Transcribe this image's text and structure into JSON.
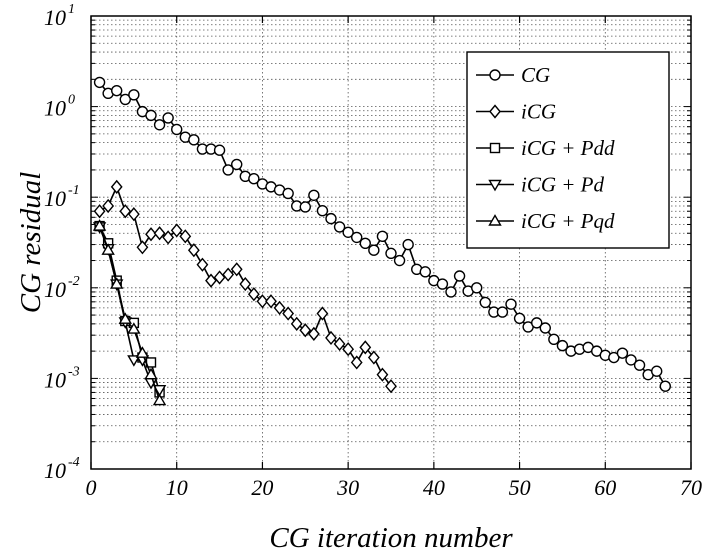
{
  "chart_data": {
    "type": "line",
    "xlabel": "CG iteration number",
    "ylabel": "CG residual",
    "x_scale": "linear",
    "y_scale": "log",
    "xlim": [
      0,
      70
    ],
    "ylim": [
      0.0001,
      10
    ],
    "x_ticks": [
      0,
      10,
      20,
      30,
      40,
      50,
      60,
      70
    ],
    "y_ticks": [
      {
        "exp": -4,
        "base": "10",
        "exp_label": "-4"
      },
      {
        "exp": -3,
        "base": "10",
        "exp_label": "-3"
      },
      {
        "exp": -2,
        "base": "10",
        "exp_label": "-2"
      },
      {
        "exp": -1,
        "base": "10",
        "exp_label": "-1"
      },
      {
        "exp": 0,
        "base": "10",
        "exp_label": "0"
      },
      {
        "exp": 1,
        "base": "10",
        "exp_label": "1"
      }
    ],
    "grid": true,
    "legend_position": "top-right",
    "series": [
      {
        "name": "CG",
        "marker": "circle",
        "x": [
          1,
          2,
          3,
          4,
          5,
          6,
          7,
          8,
          9,
          10,
          11,
          12,
          13,
          14,
          15,
          16,
          17,
          18,
          19,
          20,
          21,
          22,
          23,
          24,
          25,
          26,
          27,
          28,
          29,
          30,
          31,
          32,
          33,
          34,
          35,
          36,
          37,
          38,
          39,
          40,
          41,
          42,
          43,
          44,
          45,
          46,
          47,
          48,
          49,
          50,
          51,
          52,
          53,
          54,
          55,
          56,
          57,
          58,
          59,
          60,
          61,
          62,
          63,
          64,
          65,
          66,
          67
        ],
        "y": [
          1.85,
          1.4,
          1.5,
          1.2,
          1.35,
          0.88,
          0.8,
          0.63,
          0.75,
          0.56,
          0.46,
          0.43,
          0.34,
          0.34,
          0.33,
          0.2,
          0.23,
          0.17,
          0.16,
          0.14,
          0.13,
          0.12,
          0.11,
          0.08,
          0.078,
          0.105,
          0.071,
          0.058,
          0.047,
          0.041,
          0.036,
          0.031,
          0.026,
          0.037,
          0.024,
          0.02,
          0.03,
          0.016,
          0.015,
          0.012,
          0.011,
          0.009,
          0.0135,
          0.0092,
          0.01,
          0.0069,
          0.0054,
          0.0054,
          0.0066,
          0.0046,
          0.0037,
          0.0041,
          0.0036,
          0.0027,
          0.0023,
          0.002,
          0.0021,
          0.0022,
          0.002,
          0.0018,
          0.0017,
          0.0019,
          0.0016,
          0.0014,
          0.0011,
          0.0012,
          0.00082
        ]
      },
      {
        "name": "iCG",
        "marker": "diamond",
        "x": [
          1,
          2,
          3,
          4,
          5,
          6,
          7,
          8,
          9,
          10,
          11,
          12,
          13,
          14,
          15,
          16,
          17,
          18,
          19,
          20,
          21,
          22,
          23,
          24,
          25,
          26,
          27,
          28,
          29,
          30,
          31,
          32,
          33,
          34,
          35
        ],
        "y": [
          0.07,
          0.08,
          0.13,
          0.07,
          0.065,
          0.028,
          0.039,
          0.04,
          0.036,
          0.043,
          0.037,
          0.026,
          0.018,
          0.012,
          0.013,
          0.014,
          0.016,
          0.011,
          0.0085,
          0.0071,
          0.0071,
          0.006,
          0.0052,
          0.004,
          0.0034,
          0.0031,
          0.0052,
          0.0028,
          0.0024,
          0.0021,
          0.0015,
          0.0022,
          0.0017,
          0.0011,
          0.00082
        ]
      },
      {
        "name": "iCG + Pdd",
        "marker": "square",
        "x": [
          1,
          2,
          3,
          4,
          5,
          6,
          7,
          8
        ],
        "y": [
          0.048,
          0.031,
          0.012,
          0.0043,
          0.0041,
          0.0017,
          0.0015,
          0.0007
        ]
      },
      {
        "name": "iCG + Pd",
        "marker": "triangle-down",
        "x": [
          1,
          2,
          3,
          4,
          5,
          6,
          7,
          8
        ],
        "y": [
          0.047,
          0.027,
          0.011,
          0.0042,
          0.0016,
          0.0016,
          0.0009,
          0.00075
        ]
      },
      {
        "name": "iCG + Pqd",
        "marker": "triangle-up",
        "x": [
          1,
          2,
          3,
          4,
          5,
          6,
          7,
          8
        ],
        "y": [
          0.048,
          0.026,
          0.011,
          0.0045,
          0.0035,
          0.0019,
          0.0011,
          0.00057
        ]
      }
    ]
  }
}
